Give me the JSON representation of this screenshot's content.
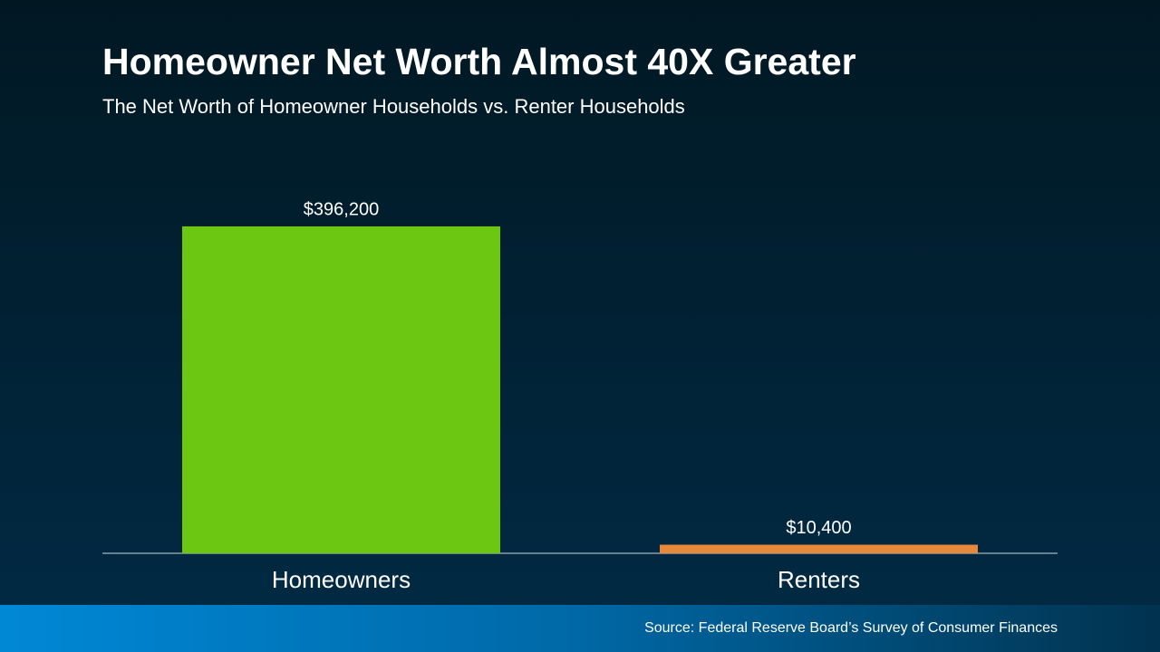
{
  "chart_data": {
    "type": "bar",
    "title": "Homeowner Net Worth Almost 40X Greater",
    "subtitle": "The Net Worth of Homeowner Households vs. Renter Households",
    "categories": [
      "Homeowners",
      "Renters"
    ],
    "values": [
      396200,
      10400
    ],
    "value_labels": [
      "$396,200",
      "$10,400"
    ],
    "colors": [
      "#6cc712",
      "#e8883a"
    ],
    "source": "Source: Federal Reserve Board’s Survey of Consumer Finances"
  }
}
